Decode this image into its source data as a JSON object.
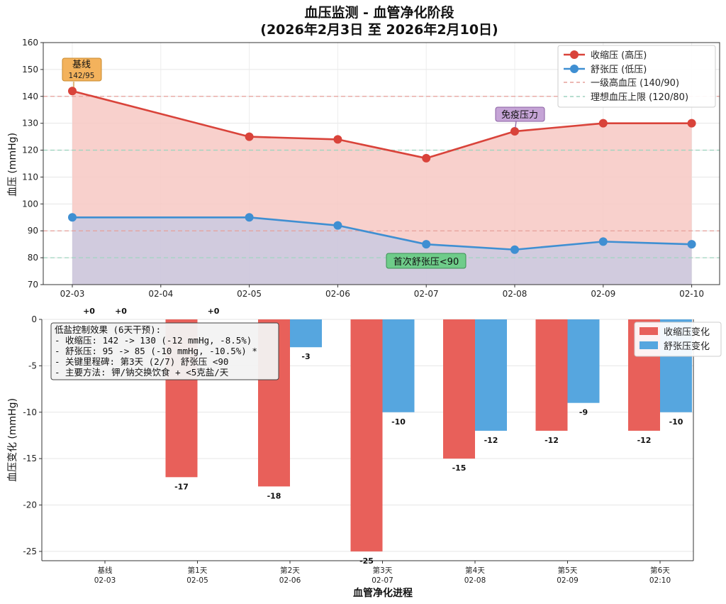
{
  "colors": {
    "systolic": "#d9433a",
    "diastolic": "#3f8fd2",
    "systolic_fill": "#f7c8c3",
    "overlap_fill": "#cfc8dc",
    "stage1_line": "#e6a09a",
    "ideal_line": "#9fd4c0",
    "bar_systolic": "#e8605a",
    "bar_diastolic": "#56a6df",
    "anno_baseline_bg": "#f3b25c",
    "anno_baseline_border": "#c98a2c",
    "anno_immune_bg": "#c5a4d6",
    "anno_immune_border": "#8a5fa3",
    "anno_milestone_bg": "#6fcc8a",
    "anno_milestone_border": "#3a8f53"
  },
  "chart_data": [
    {
      "type": "line",
      "title": "血压监测 - 血管净化阶段",
      "subtitle": "(2026年2月3日 至 2026年2月10日)",
      "xlabel": "",
      "ylabel": "血压 (mmHg)",
      "x_ticks": [
        "02-03",
        "02-04",
        "02-05",
        "02-06",
        "02-07",
        "02-08",
        "02-09",
        "02-10"
      ],
      "x_day_index": [
        0,
        2,
        3,
        4,
        5,
        6,
        7
      ],
      "ylim": [
        70,
        160
      ],
      "y_ticks": [
        70,
        80,
        90,
        100,
        110,
        120,
        130,
        140,
        150,
        160
      ],
      "series": [
        {
          "name": "收缩压 (高压)",
          "values": [
            142,
            125,
            124,
            117,
            127,
            130,
            130
          ]
        },
        {
          "name": "舒张压 (低压)",
          "values": [
            95,
            95,
            92,
            85,
            83,
            86,
            85
          ]
        }
      ],
      "reference_lines": [
        {
          "name": "一级高血压 (140/90)",
          "values": [
            140,
            90
          ]
        },
        {
          "name": "理想血压上限 (120/80)",
          "values": [
            120,
            80
          ]
        }
      ],
      "annotations": [
        {
          "title": "基线",
          "text": "142/95",
          "point_index": 0
        },
        {
          "title": "免疫压力",
          "text": "",
          "point_index": 4
        },
        {
          "title": "首次舒张压<90",
          "text": "",
          "point_index": 3
        }
      ],
      "legend_position": "top-right",
      "grid": true
    },
    {
      "type": "bar",
      "ylabel": "血压变化 (mmHg)",
      "xlabel": "血管净化进程",
      "ylim": [
        -26,
        0
      ],
      "y_ticks": [
        0,
        -5,
        -10,
        -15,
        -20,
        -25
      ],
      "categories": [
        {
          "label": "基线",
          "date": "02-03"
        },
        {
          "label": "第1天",
          "date": "02-05"
        },
        {
          "label": "第2天",
          "date": "02-06"
        },
        {
          "label": "第3天",
          "date": "02-07"
        },
        {
          "label": "第4天",
          "date": "02-08"
        },
        {
          "label": "第5天",
          "date": "02-09"
        },
        {
          "label": "第6天",
          "date": "02:10"
        }
      ],
      "series": [
        {
          "name": "收缩压变化",
          "values": [
            0,
            -17,
            -18,
            -25,
            -15,
            -12,
            -12
          ]
        },
        {
          "name": "舒张压变化",
          "values": [
            0,
            0,
            -3,
            -10,
            -12,
            -9,
            -10
          ]
        }
      ],
      "value_labels": [
        [
          "+0",
          "-17",
          "-18",
          "-25",
          "-15",
          "-12",
          "-12"
        ],
        [
          "+0",
          "+0",
          "-3",
          "-10",
          "-12",
          "-9",
          "-10"
        ]
      ],
      "legend_position": "top-right",
      "grid": true,
      "summary_box": [
        "低盐控制效果 (6天干预):",
        "- 收缩压: 142 -> 130 (-12 mmHg, -8.5%)",
        "- 舒张压: 95 -> 85 (-10 mmHg, -10.5%) *",
        "- 关键里程碑: 第3天 (2/7) 舒张压 <90",
        "- 主要方法: 钾/钠交换饮食 + <5克盐/天"
      ]
    }
  ]
}
